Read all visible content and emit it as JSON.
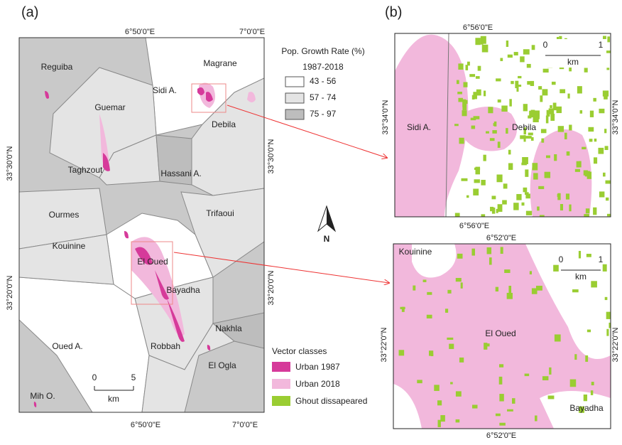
{
  "panel_a": {
    "label": "(a)",
    "top_ticks": [
      "6°50'0\"E",
      "7°0'0\"E"
    ],
    "bottom_ticks": [
      "6°50'0\"E",
      "7°0'0\"E"
    ],
    "left_ticks": [
      "33°30'0\"N",
      "33°20'0\"N"
    ],
    "right_ticks": [
      "33°30'0\"N",
      "33°20'0\"N"
    ],
    "regions": [
      "Reguiba",
      "Guemar",
      "Magrane",
      "Sidi A.",
      "Debila",
      "Taghzout",
      "Hassani A.",
      "Ourmes",
      "Trifaoui",
      "Kouinine",
      "El Oued",
      "Bayadha",
      "Nakhla",
      "Oued A.",
      "Robbah",
      "El Ogla",
      "Mih O."
    ],
    "scale": {
      "start": "0",
      "end": "5",
      "unit": "km"
    }
  },
  "growth_legend": {
    "title": "Pop. Growth Rate (%)",
    "subtitle": "1987-2018",
    "items": [
      "43 - 56",
      "57 - 74",
      "75 - 97"
    ]
  },
  "north_arrow": "N",
  "class_legend": {
    "title": "Vector classes",
    "items": [
      "Urban 1987",
      "Urban 2018",
      "Ghout dissapeared"
    ]
  },
  "panel_b": {
    "label": "(b)",
    "top_map": {
      "top_tick": "6°56'0\"E",
      "bottom_tick": "6°56'0\"E",
      "left_tick": "33°34'0\"N",
      "right_tick": "33°34'0\"N",
      "places": [
        "Sidi A.",
        "Debila"
      ],
      "scale": {
        "start": "0",
        "end": "1",
        "unit": "km"
      }
    },
    "bottom_map": {
      "top_tick": "6°52'0\"E",
      "bottom_tick": "6°52'0\"E",
      "left_tick": "33°22'0\"N",
      "right_tick": "33°22'0\"N",
      "places": [
        "Kouinine",
        "El Oued",
        "Bayadha"
      ],
      "scale": {
        "start": "0",
        "end": "1",
        "unit": "km"
      }
    }
  }
}
